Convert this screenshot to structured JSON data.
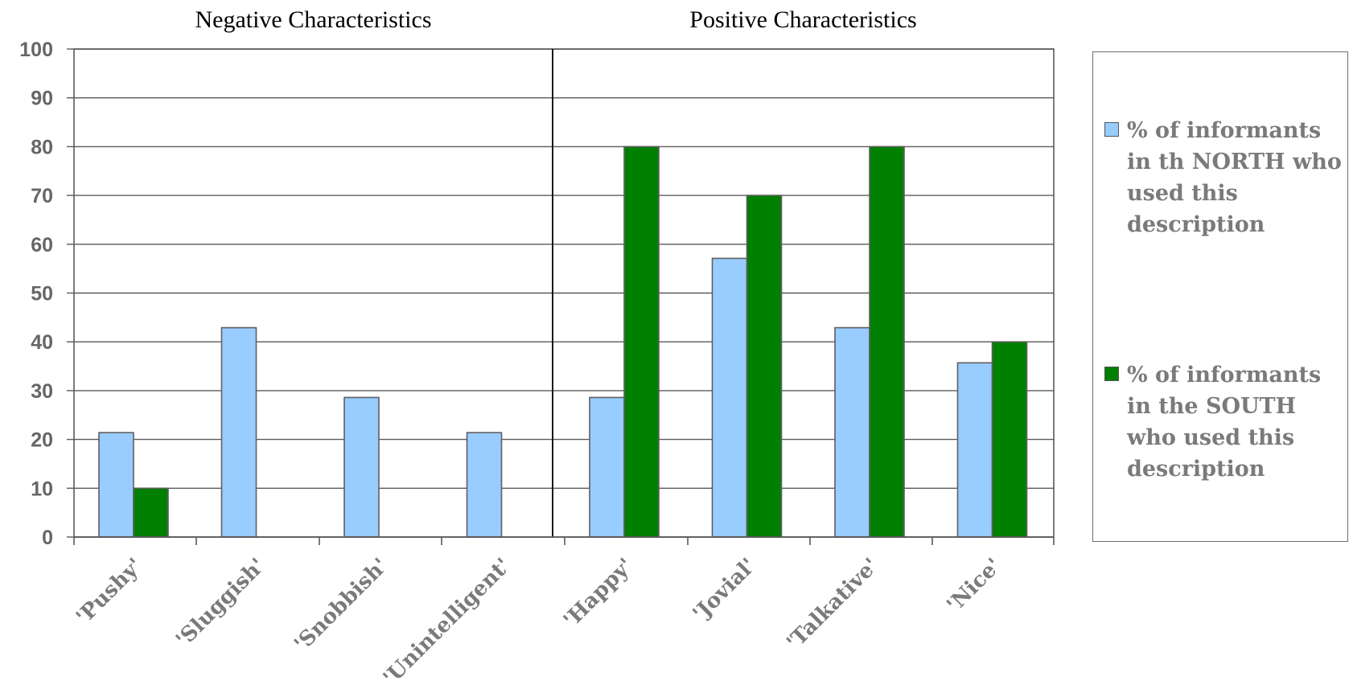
{
  "chart_data": {
    "type": "bar",
    "title": "",
    "xlabel": "",
    "ylabel": "",
    "ylim": [
      0,
      100
    ],
    "yticks": [
      0,
      10,
      20,
      30,
      40,
      50,
      60,
      70,
      80,
      90,
      100
    ],
    "grid": true,
    "legend_position": "right",
    "groups": [
      {
        "title": "Negative Characteristics",
        "categories": [
          "'Pushy'",
          "'Sluggish'",
          "'Snobbish'",
          "'Unintelligent'"
        ]
      },
      {
        "title": "Positive Characteristics",
        "categories": [
          "'Happy'",
          "'Jovial'",
          "'Talkative'",
          "'Nice'"
        ]
      }
    ],
    "categories": [
      "'Pushy'",
      "'Sluggish'",
      "'Snobbish'",
      "'Unintelligent'",
      "'Happy'",
      "'Jovial'",
      "'Talkative'",
      "'Nice'"
    ],
    "series": [
      {
        "name": "% of informants in th NORTH who used this description",
        "color": "#99ccff",
        "values": [
          21.4,
          42.9,
          28.6,
          21.4,
          28.6,
          57.1,
          42.9,
          35.7
        ]
      },
      {
        "name": "% of informants in the SOUTH who used this description",
        "color": "#008000",
        "values": [
          10,
          0,
          0,
          0,
          80,
          70,
          80,
          40
        ]
      }
    ]
  }
}
